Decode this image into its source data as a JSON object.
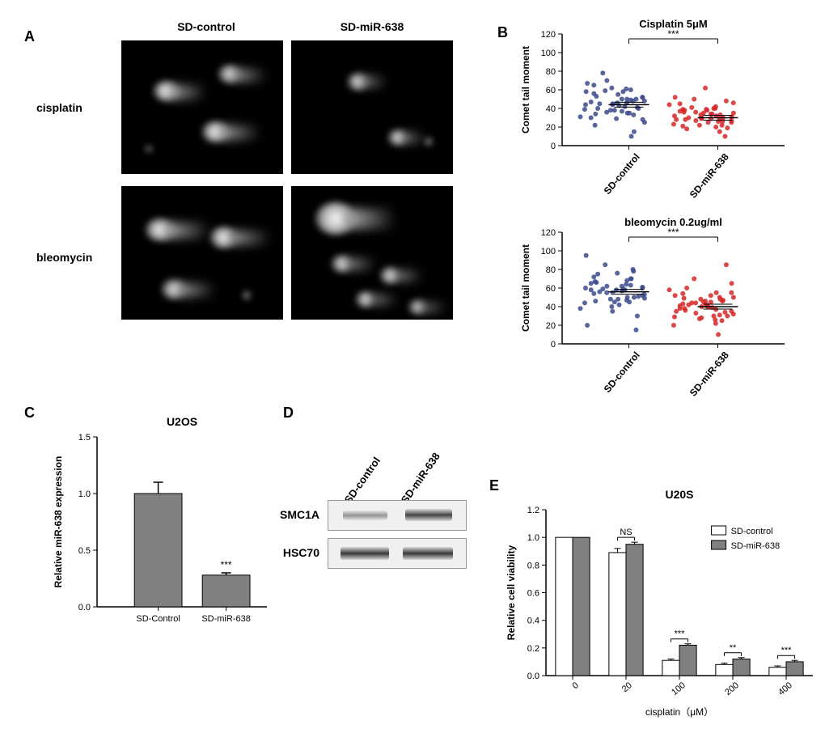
{
  "panelA": {
    "label": "A",
    "col_headers": [
      "SD-control",
      "SD-miR-638"
    ],
    "row_headers": [
      "cisplatin",
      "bleomycin"
    ],
    "image_bg": "#000000",
    "comet_color_head": "#e8e8e8",
    "comet_color_tail": "#888888"
  },
  "panelB": {
    "label": "B",
    "chart1": {
      "title": "Cisplatin 5μM",
      "ylabel": "Comet tail moment",
      "ylim": [
        0,
        120
      ],
      "ytick_step": 20,
      "categories": [
        "SD-control",
        "SD-miR-638"
      ],
      "colors": [
        "#3c4a8c",
        "#d62728"
      ],
      "means": [
        44,
        30
      ],
      "sig": "***",
      "points_control": [
        45,
        52,
        38,
        60,
        42,
        35,
        48,
        55,
        30,
        40,
        62,
        70,
        58,
        44,
        36,
        50,
        28,
        46,
        33,
        58,
        41,
        49,
        15,
        65,
        39,
        47,
        53,
        31,
        44,
        56,
        25,
        50,
        37,
        61,
        43,
        10,
        48,
        52,
        34,
        59,
        45,
        38,
        22,
        67,
        78,
        40,
        50,
        35,
        46,
        29
      ],
      "points_mir": [
        30,
        25,
        35,
        28,
        40,
        32,
        22,
        38,
        45,
        18,
        33,
        27,
        52,
        29,
        36,
        20,
        31,
        42,
        26,
        34,
        48,
        15,
        30,
        39,
        23,
        37,
        28,
        44,
        32,
        21,
        35,
        10,
        29,
        40,
        25,
        33,
        46,
        27,
        38,
        50,
        30,
        22,
        36,
        28,
        41,
        19,
        34,
        26,
        39,
        62
      ]
    },
    "chart2": {
      "title": "bleomycin 0.2ug/ml",
      "ylabel": "Comet tail moment",
      "ylim": [
        0,
        120
      ],
      "ytick_step": 20,
      "categories": [
        "SD-control",
        "SD-miR-638"
      ],
      "colors": [
        "#3c4a8c",
        "#d62728"
      ],
      "means": [
        56,
        40
      ],
      "sig": "***",
      "points_control": [
        55,
        60,
        45,
        70,
        58,
        50,
        80,
        48,
        65,
        75,
        40,
        62,
        95,
        35,
        55,
        68,
        52,
        47,
        78,
        59,
        30,
        63,
        50,
        72,
        44,
        58,
        66,
        38,
        60,
        54,
        49,
        15,
        57,
        64,
        42,
        70,
        53,
        61,
        46,
        85,
        56,
        48,
        67,
        20,
        59,
        51,
        62,
        45,
        76,
        58
      ],
      "points_mir": [
        40,
        35,
        45,
        50,
        30,
        55,
        25,
        42,
        38,
        60,
        48,
        33,
        52,
        28,
        44,
        37,
        65,
        22,
        46,
        39,
        85,
        31,
        47,
        54,
        20,
        41,
        36,
        58,
        29,
        43,
        50,
        34,
        45,
        26,
        40,
        48,
        32,
        55,
        38,
        70,
        42,
        27,
        49,
        35,
        44,
        30,
        52,
        10,
        41,
        46
      ]
    }
  },
  "panelC": {
    "label": "C",
    "title": "U2OS",
    "ylabel": "Relative miR-638 expression",
    "ylim": [
      0,
      1.5
    ],
    "ytick_step": 0.5,
    "categories": [
      "SD-Control",
      "SD-miR-638"
    ],
    "values": [
      1.0,
      0.28
    ],
    "errors": [
      0.1,
      0.02
    ],
    "bar_color": "#808080",
    "sig": "***"
  },
  "panelD": {
    "label": "D",
    "lane_headers": [
      "SD-control",
      "SD-miR-638"
    ],
    "rows": [
      "SMC1A",
      "HSC70"
    ],
    "intensities": {
      "SMC1A": [
        0.45,
        0.85
      ],
      "HSC70": [
        0.9,
        0.9
      ]
    }
  },
  "panelE": {
    "label": "E",
    "title": "U20S",
    "ylabel": "Relative cell viability",
    "xlabel": "cisplatin（μM）",
    "ylim": [
      0,
      1.2
    ],
    "ytick_step": 0.2,
    "categories": [
      "0",
      "20",
      "100",
      "200",
      "400"
    ],
    "series": [
      {
        "name": "SD-control",
        "color": "#ffffff",
        "border": "#000000",
        "values": [
          1.0,
          0.89,
          0.11,
          0.08,
          0.06
        ],
        "errors": [
          0,
          0.03,
          0.01,
          0.01,
          0.01
        ]
      },
      {
        "name": "SD-miR-638",
        "color": "#808080",
        "border": "#000000",
        "values": [
          1.0,
          0.95,
          0.22,
          0.12,
          0.1
        ],
        "errors": [
          0,
          0.015,
          0.01,
          0.01,
          0.01
        ]
      }
    ],
    "sig": [
      "",
      "NS",
      "***",
      "**",
      "***"
    ]
  },
  "styling": {
    "axis_color": "#000000",
    "grid_color": "#ffffff",
    "title_fontsize": 14,
    "label_fontsize": 13,
    "tick_fontsize": 11
  }
}
